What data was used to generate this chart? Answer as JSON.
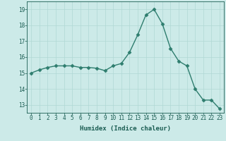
{
  "x": [
    0,
    1,
    2,
    3,
    4,
    5,
    6,
    7,
    8,
    9,
    10,
    11,
    12,
    13,
    14,
    15,
    16,
    17,
    18,
    19,
    20,
    21,
    22,
    23
  ],
  "y": [
    15.0,
    15.2,
    15.35,
    15.45,
    15.45,
    15.45,
    15.35,
    15.35,
    15.3,
    15.15,
    15.45,
    15.6,
    16.3,
    17.4,
    18.65,
    19.0,
    18.1,
    16.55,
    15.75,
    15.45,
    14.0,
    13.3,
    13.3,
    12.75
  ],
  "line_color": "#2e7d6e",
  "marker": "D",
  "markersize": 2.5,
  "linewidth": 1.0,
  "xlabel": "Humidex (Indice chaleur)",
  "bg_color": "#cceae8",
  "grid_color": "#b0d8d4",
  "xlim": [
    -0.5,
    23.5
  ],
  "ylim": [
    12.5,
    19.5
  ],
  "xticks": [
    0,
    1,
    2,
    3,
    4,
    5,
    6,
    7,
    8,
    9,
    10,
    11,
    12,
    13,
    14,
    15,
    16,
    17,
    18,
    19,
    20,
    21,
    22,
    23
  ],
  "yticks": [
    13,
    14,
    15,
    16,
    17,
    18,
    19
  ],
  "tick_color": "#1a5c52",
  "tick_fontsize": 5.5,
  "xlabel_fontsize": 6.5,
  "axis_color": "#1a5c52"
}
